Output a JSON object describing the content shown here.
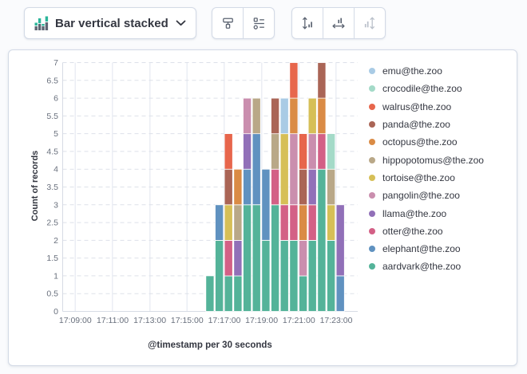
{
  "toolbar": {
    "chart_type": {
      "label": "Bar vertical stacked",
      "icon": "bar-vertical-stacked-icon",
      "chevron": "chevron-down-icon"
    },
    "groups": [
      {
        "buttons": [
          {
            "icon": "paint-roller-icon",
            "disabled": false
          },
          {
            "icon": "layer-settings-icon",
            "disabled": false
          }
        ]
      },
      {
        "buttons": [
          {
            "icon": "vertical-axis-arrows-icon",
            "disabled": false
          },
          {
            "icon": "horizontal-axis-arrows-icon",
            "disabled": false
          },
          {
            "icon": "collapse-axis-icon",
            "disabled": true
          }
        ]
      }
    ]
  },
  "chart_data": {
    "type": "bar",
    "stacked": true,
    "title": "",
    "xlabel": "@timestamp per 30 seconds",
    "ylabel": "Count of records",
    "ylim": [
      0,
      7
    ],
    "ytick_step": 0.5,
    "grid": true,
    "legend_position": "right",
    "xticks": [
      "17:09:00",
      "17:11:00",
      "17:13:00",
      "17:15:00",
      "17:17:00",
      "17:19:00",
      "17:21:00",
      "17:23:00"
    ],
    "x": [
      "17:16:00",
      "17:16:30",
      "17:17:00",
      "17:17:30",
      "17:18:00",
      "17:18:30",
      "17:19:00",
      "17:19:30",
      "17:20:00",
      "17:20:30",
      "17:21:00",
      "17:21:30",
      "17:22:00",
      "17:22:30",
      "17:23:00"
    ],
    "series": [
      {
        "name": "aardvark@the.zoo",
        "color": "#54B399",
        "values": [
          1,
          2,
          1,
          1,
          3,
          3,
          2,
          3,
          2,
          2,
          1,
          2,
          4,
          2,
          0
        ]
      },
      {
        "name": "elephant@the.zoo",
        "color": "#6092C0",
        "values": [
          0,
          1,
          0,
          0,
          1,
          2,
          2,
          0,
          0,
          0,
          0,
          0,
          0,
          0,
          1
        ]
      },
      {
        "name": "otter@the.zoo",
        "color": "#D36086",
        "values": [
          0,
          0,
          1,
          0,
          0,
          0,
          0,
          1,
          1,
          1,
          0,
          1,
          1,
          0,
          0
        ]
      },
      {
        "name": "llama@the.zoo",
        "color": "#9170B8",
        "values": [
          0,
          0,
          0,
          1,
          1,
          0,
          0,
          0,
          0,
          0,
          0,
          1,
          0,
          0,
          2
        ]
      },
      {
        "name": "pangolin@the.zoo",
        "color": "#CA8EAE",
        "values": [
          0,
          0,
          0,
          0,
          1,
          0,
          0,
          0,
          0,
          2,
          1,
          1,
          0,
          0,
          0
        ]
      },
      {
        "name": "tortoise@the.zoo",
        "color": "#D6BF57",
        "values": [
          0,
          0,
          1,
          0,
          0,
          0,
          0,
          0,
          2,
          0,
          0,
          1,
          0,
          1,
          0
        ]
      },
      {
        "name": "hippopotomus@the.zoo",
        "color": "#B9A888",
        "values": [
          0,
          0,
          0,
          1,
          0,
          1,
          0,
          1,
          0,
          0,
          0,
          0,
          0,
          1,
          0
        ]
      },
      {
        "name": "octopus@the.zoo",
        "color": "#DA8B45",
        "values": [
          0,
          0,
          0,
          1,
          0,
          0,
          0,
          0,
          0,
          1,
          1,
          0,
          1,
          0,
          0
        ]
      },
      {
        "name": "panda@the.zoo",
        "color": "#AA6556",
        "values": [
          0,
          0,
          1,
          0,
          0,
          0,
          0,
          1,
          0,
          0,
          1,
          0,
          1,
          0,
          0
        ]
      },
      {
        "name": "walrus@the.zoo",
        "color": "#E7664C",
        "values": [
          0,
          0,
          1,
          0,
          0,
          0,
          0,
          0,
          0,
          1,
          1,
          0,
          0,
          0,
          0
        ]
      },
      {
        "name": "crocodile@the.zoo",
        "color": "#A4DAC8",
        "values": [
          0,
          0,
          0,
          0,
          0,
          0,
          0,
          0,
          0,
          0,
          0,
          0,
          0,
          1,
          0
        ]
      },
      {
        "name": "emu@the.zoo",
        "color": "#A9CBE5",
        "values": [
          0,
          0,
          0,
          0,
          0,
          0,
          0,
          0,
          1,
          0,
          0,
          0,
          0,
          0,
          0
        ]
      }
    ]
  }
}
